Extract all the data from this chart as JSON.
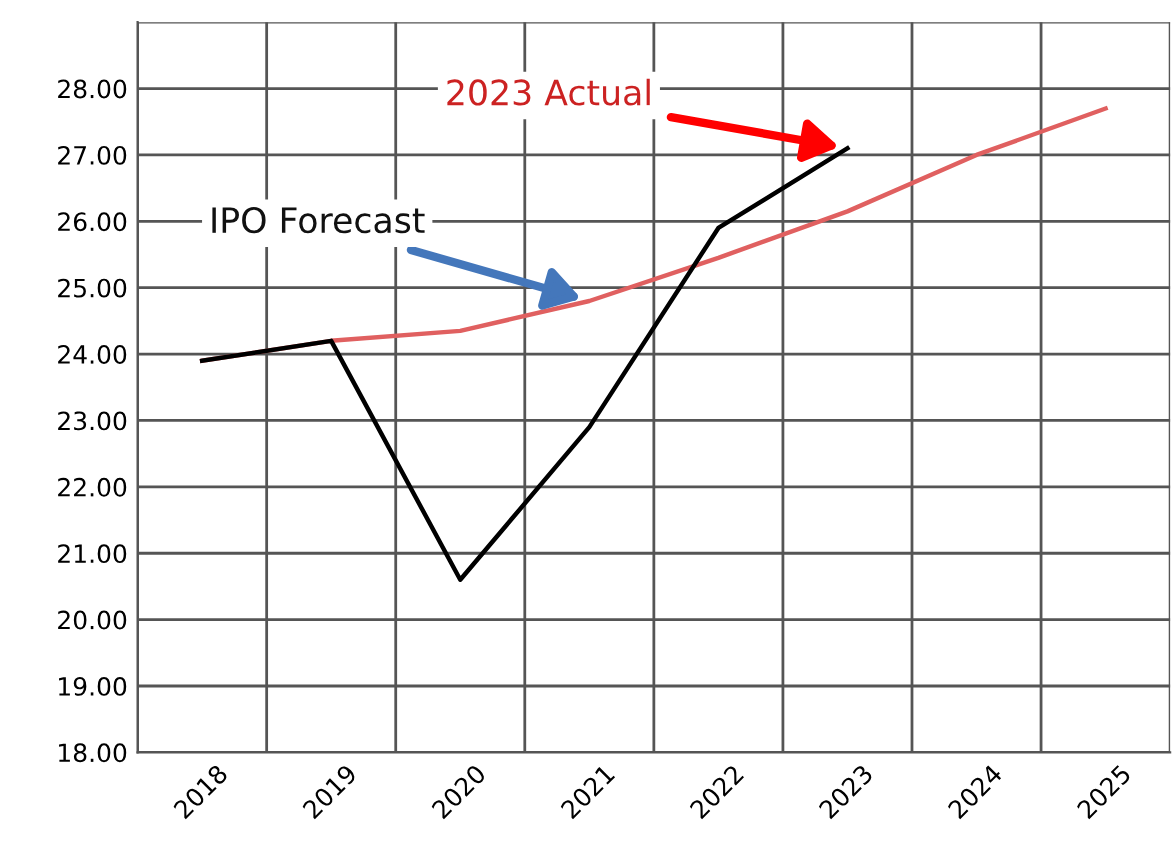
{
  "chart_data": {
    "type": "line",
    "categories": [
      "2018",
      "2019",
      "2020",
      "2021",
      "2022",
      "2023",
      "2024",
      "2025"
    ],
    "series": [
      {
        "color": "#e06060",
        "values": [
          23.9,
          24.2,
          24.35,
          24.8,
          25.45,
          26.15,
          27.0,
          27.7
        ]
      },
      {
        "color": "#000000",
        "values": [
          23.9,
          24.2,
          20.6,
          22.9,
          25.9,
          27.1,
          null,
          null
        ]
      }
    ],
    "ylim": [
      18,
      29
    ],
    "yticks": [
      {
        "value": 18,
        "label": "18.00"
      },
      {
        "value": 19,
        "label": "19.00"
      },
      {
        "value": 20,
        "label": "20.00"
      },
      {
        "value": 21,
        "label": "21.00"
      },
      {
        "value": 22,
        "label": "22.00"
      },
      {
        "value": 23,
        "label": "23.00"
      },
      {
        "value": 24,
        "label": "24.00"
      },
      {
        "value": 25,
        "label": "25.00"
      },
      {
        "value": 26,
        "label": "26.00"
      },
      {
        "value": 27,
        "label": "27.00"
      },
      {
        "value": 28,
        "label": "28.00"
      },
      {
        "value": 29,
        "label": null
      }
    ],
    "grid": true,
    "marker": "none",
    "line_style": "solid",
    "annotations": [
      {
        "text": "2023 Actual",
        "x": "2023",
        "y": 27.1
      },
      {
        "text": "IPO Forecast",
        "x": "2021",
        "y": 24.8
      }
    ]
  }
}
